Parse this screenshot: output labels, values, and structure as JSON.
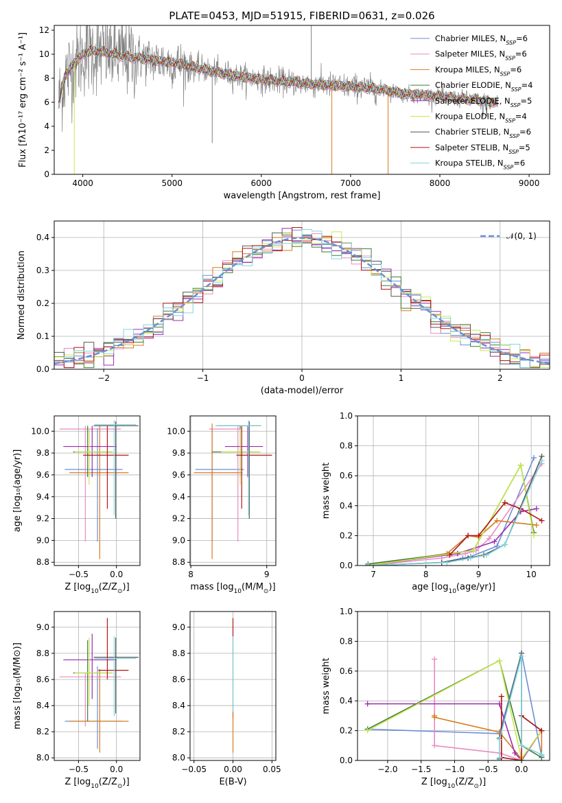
{
  "title": "PLATE=0453, MJD=51915, FIBERID=0631, z=0.026",
  "colors": {
    "Chabrier MILES": "#6b8ed6",
    "Salpeter MILES": "#e98ac4",
    "Kroupa MILES": "#d87a1e",
    "Chabrier ELODIE": "#3e7a3a",
    "Salpeter ELODIE": "#9c2ab0",
    "Kroupa ELODIE": "#c7e84a",
    "Chabrier STELIB": "#555555",
    "Salpeter STELIB": "#b01515",
    "Kroupa STELIB": "#7fd6de",
    "data": "#808080",
    "normal": "#6b8ed6"
  },
  "chart_data": [
    {
      "id": "spectrum",
      "type": "line",
      "xlabel": "wavelength [Angstrom, rest frame]",
      "ylabel": "Flux [fλ10⁻¹⁷ erg cm⁻² s⁻¹ A⁻¹]",
      "xlim": [
        3680,
        9230
      ],
      "ylim": [
        0,
        12.4
      ],
      "xticks": [
        4000,
        5000,
        6000,
        7000,
        8000,
        9000
      ],
      "yticks": [
        0,
        2,
        4,
        6,
        8,
        10,
        12
      ],
      "grid": false,
      "legend_position": "top-right",
      "legend": [
        {
          "name": "Chabrier MILES",
          "label_main": "Chabrier MILES, N",
          "sub": "SSP",
          "suffix": "=6"
        },
        {
          "name": "Salpeter MILES",
          "label_main": "Salpeter MILES, N",
          "sub": "SSP",
          "suffix": "=6"
        },
        {
          "name": "Kroupa MILES",
          "label_main": "Kroupa MILES, N",
          "sub": "SSP",
          "suffix": "=6"
        },
        {
          "name": "Chabrier ELODIE",
          "label_main": "Chabrier ELODIE, N",
          "sub": "SSP",
          "suffix": "=4"
        },
        {
          "name": "Salpeter ELODIE",
          "label_main": "Salpeter ELODIE, N",
          "sub": "SSP",
          "suffix": "=5"
        },
        {
          "name": "Kroupa ELODIE",
          "label_main": "Kroupa ELODIE, N",
          "sub": "SSP",
          "suffix": "=4"
        },
        {
          "name": "Chabrier STELIB",
          "label_main": "Chabrier STELIB, N",
          "sub": "SSP",
          "suffix": "=6"
        },
        {
          "name": "Salpeter STELIB",
          "label_main": "Salpeter STELIB, N",
          "sub": "SSP",
          "suffix": "=5"
        },
        {
          "name": "Kroupa STELIB",
          "label_main": "Kroupa STELIB, N",
          "sub": "SSP",
          "suffix": "=6"
        }
      ],
      "continuum": {
        "x": [
          3730,
          3800,
          3900,
          4000,
          4100,
          4300,
          4500,
          4700,
          5000,
          5200,
          5500,
          5800,
          6000,
          6300,
          6600,
          6800,
          7000,
          7200,
          7400,
          7600,
          7800,
          8000,
          8200,
          8400,
          8600,
          8800,
          9000
        ],
        "y": [
          6.0,
          8.2,
          9.2,
          10.0,
          10.3,
          10.1,
          9.8,
          9.6,
          9.3,
          9.0,
          8.5,
          8.1,
          7.9,
          7.7,
          7.5,
          7.4,
          7.3,
          7.2,
          7.0,
          6.7,
          6.6,
          6.5,
          6.3,
          6.2,
          6.0,
          5.9,
          5.8
        ]
      },
      "spikes": [
        {
          "x": 3905,
          "y": 0
        },
        {
          "x": 6790,
          "y": 0
        },
        {
          "x": 7420,
          "y": 0
        },
        {
          "x": 5450,
          "y": 2.6
        },
        {
          "x": 6560,
          "y": 12.4
        }
      ]
    },
    {
      "id": "residuals",
      "type": "step",
      "xlabel": "(data-model)/error",
      "ylabel": "Normed distribution",
      "xlim": [
        -2.5,
        2.5
      ],
      "ylim": [
        0,
        0.45
      ],
      "xticks": [
        -2,
        -1,
        0,
        1,
        2
      ],
      "xtick_labels": [
        "−2",
        "−1",
        "0",
        "1",
        "2"
      ],
      "yticks": [
        0.0,
        0.1,
        0.2,
        0.3,
        0.4
      ],
      "ytick_labels": [
        "0.0",
        "0.1",
        "0.2",
        "0.3",
        "0.4"
      ],
      "grid": true,
      "legend_position": "top-right",
      "legend": [
        {
          "name": "normal",
          "label_main": "𝒩(0, 1)"
        }
      ],
      "bin_width": 0.1
    },
    {
      "id": "age_vs_Z",
      "type": "errorbar",
      "xlabel_main": "Z [log",
      "xlabel_sub": "10",
      "xlabel_rest": "(Z/Z",
      "xlabel_sub2": "⊙",
      "xlabel_end": ")]",
      "ylabel": "age  [log₁₀(age/yr)]",
      "xlim": [
        -0.82,
        0.31
      ],
      "ylim": [
        8.77,
        10.14
      ],
      "xticks": [
        -0.5,
        0.0
      ],
      "xtick_labels": [
        "−0.5",
        "0.0"
      ],
      "yticks": [
        8.8,
        9.0,
        9.2,
        9.4,
        9.6,
        9.8,
        10.0
      ],
      "ytick_labels": [
        "8.8",
        "9.0",
        "9.2",
        "9.4",
        "9.6",
        "9.8",
        "10.0"
      ],
      "grid": true,
      "points": [
        {
          "series": "Chabrier MILES",
          "x": -0.25,
          "y": 9.65,
          "x_lo": -0.68,
          "x_hi": 0.08,
          "y_lo": 8.99,
          "y_hi": 10.03
        },
        {
          "series": "Salpeter MILES",
          "x": -0.41,
          "y": 10.02,
          "x_lo": -0.75,
          "x_hi": 0.06,
          "y_lo": 8.99,
          "y_hi": 10.05
        },
        {
          "series": "Kroupa MILES",
          "x": -0.22,
          "y": 9.62,
          "x_lo": -0.62,
          "x_hi": 0.16,
          "y_lo": 8.83,
          "y_hi": 10.05
        },
        {
          "series": "Chabrier ELODIE",
          "x": -0.38,
          "y": 9.81,
          "x_lo": -0.57,
          "x_hi": -0.05,
          "y_lo": 9.58,
          "y_hi": 10.05
        },
        {
          "series": "Salpeter ELODIE",
          "x": -0.32,
          "y": 9.86,
          "x_lo": -0.7,
          "x_hi": 0.0,
          "y_lo": 9.58,
          "y_hi": 10.05
        },
        {
          "series": "Kroupa ELODIE",
          "x": -0.36,
          "y": 9.81,
          "x_lo": -0.55,
          "x_hi": -0.05,
          "y_lo": 9.51,
          "y_hi": 10.02
        },
        {
          "series": "Chabrier STELIB",
          "x": -0.01,
          "y": 10.05,
          "x_lo": -0.3,
          "x_hi": 0.29,
          "y_lo": 9.2,
          "y_hi": 10.09
        },
        {
          "series": "Salpeter STELIB",
          "x": -0.12,
          "y": 9.78,
          "x_lo": -0.44,
          "x_hi": 0.16,
          "y_lo": 9.29,
          "y_hi": 10.05
        },
        {
          "series": "Kroupa STELIB",
          "x": -0.03,
          "y": 10.06,
          "x_lo": -0.29,
          "x_hi": 0.26,
          "y_lo": 9.23,
          "y_hi": 10.1
        }
      ]
    },
    {
      "id": "age_vs_mass",
      "type": "errorbar",
      "xlabel_main": "mass [log",
      "xlabel_sub": "10",
      "xlabel_rest": "(M/M",
      "xlabel_sub2": "⊙",
      "xlabel_end": ")]",
      "ylabel": "",
      "xlim": [
        7.99,
        9.12
      ],
      "ylim": [
        8.77,
        10.14
      ],
      "xticks": [
        8,
        9
      ],
      "xtick_labels": [
        "8",
        "9"
      ],
      "yticks": [
        8.8,
        9.0,
        9.2,
        9.4,
        9.6,
        9.8,
        10.0
      ],
      "ytick_labels": [
        "8.8",
        "9.0",
        "9.2",
        "9.4",
        "9.6",
        "9.8",
        "10.0"
      ],
      "grid": true,
      "points": [
        {
          "series": "Chabrier MILES",
          "x": 8.28,
          "y": 9.65,
          "x_lo": 8.06,
          "x_hi": 8.7,
          "y_lo": 8.99,
          "y_hi": 10.03
        },
        {
          "series": "Salpeter MILES",
          "x": 8.62,
          "y": 10.02,
          "x_lo": 8.24,
          "x_hi": 8.65,
          "y_lo": 8.99,
          "y_hi": 10.05
        },
        {
          "series": "Kroupa MILES",
          "x": 8.28,
          "y": 9.62,
          "x_lo": 8.04,
          "x_hi": 8.68,
          "y_lo": 8.83,
          "y_hi": 10.07
        },
        {
          "series": "Chabrier ELODIE",
          "x": 8.65,
          "y": 9.81,
          "x_lo": 8.28,
          "x_hi": 8.9,
          "y_lo": 9.58,
          "y_hi": 10.05
        },
        {
          "series": "Salpeter ELODIE",
          "x": 8.75,
          "y": 9.86,
          "x_lo": 8.45,
          "x_hi": 8.95,
          "y_lo": 9.58,
          "y_hi": 10.05
        },
        {
          "series": "Kroupa ELODIE",
          "x": 8.65,
          "y": 9.81,
          "x_lo": 8.4,
          "x_hi": 8.92,
          "y_lo": 9.51,
          "y_hi": 10.02
        },
        {
          "series": "Chabrier STELIB",
          "x": 8.77,
          "y": 10.05,
          "x_lo": 8.34,
          "x_hi": 8.92,
          "y_lo": 9.2,
          "y_hi": 10.09
        },
        {
          "series": "Salpeter STELIB",
          "x": 8.67,
          "y": 9.78,
          "x_lo": 8.6,
          "x_hi": 9.07,
          "y_lo": 9.29,
          "y_hi": 10.05
        },
        {
          "series": "Kroupa STELIB",
          "x": 8.76,
          "y": 10.05,
          "x_lo": 8.32,
          "x_hi": 8.93,
          "y_lo": 9.23,
          "y_hi": 10.1
        }
      ]
    },
    {
      "id": "weight_vs_age",
      "type": "line",
      "xlabel_main": "age  [log",
      "xlabel_sub": "10",
      "xlabel_rest": "(age/yr)]",
      "ylabel": "mass weight",
      "xlim": [
        6.7,
        10.35
      ],
      "ylim": [
        0,
        1.0
      ],
      "xticks": [
        7,
        8,
        9,
        10
      ],
      "xtick_labels": [
        "7",
        "8",
        "9",
        "10"
      ],
      "yticks": [
        0.0,
        0.2,
        0.4,
        0.6,
        0.8,
        1.0
      ],
      "ytick_labels": [
        "0.0",
        "0.2",
        "0.4",
        "0.6",
        "0.8",
        "1.0"
      ],
      "grid": true,
      "series": [
        {
          "name": "Chabrier MILES",
          "x": [
            6.9,
            8.3,
            8.7,
            8.85,
            9.35,
            10.05
          ],
          "y": [
            0.0,
            0.02,
            0.05,
            0.06,
            0.13,
            0.72
          ]
        },
        {
          "name": "Salpeter MILES",
          "x": [
            6.9,
            8.3,
            8.75,
            8.95,
            9.2,
            10.2
          ],
          "y": [
            0.0,
            0.05,
            0.08,
            0.1,
            0.18,
            0.68
          ]
        },
        {
          "name": "Kroupa MILES",
          "x": [
            6.9,
            8.4,
            8.8,
            9.0,
            9.35,
            10.1
          ],
          "y": [
            0.0,
            0.08,
            0.2,
            0.19,
            0.3,
            0.27
          ]
        },
        {
          "name": "Chabrier ELODIE",
          "x": [
            6.9,
            8.9,
            9.8,
            10.05
          ],
          "y": [
            0.01,
            0.1,
            0.67,
            0.22
          ]
        },
        {
          "name": "Salpeter ELODIE",
          "x": [
            6.9,
            8.6,
            9.3,
            9.8,
            10.1
          ],
          "y": [
            0.0,
            0.08,
            0.16,
            0.36,
            0.38
          ]
        },
        {
          "name": "Kroupa ELODIE",
          "x": [
            6.9,
            8.9,
            9.8,
            10.05
          ],
          "y": [
            0.0,
            0.1,
            0.67,
            0.2
          ]
        },
        {
          "name": "Chabrier STELIB",
          "x": [
            6.9,
            8.3,
            8.8,
            9.1,
            9.5,
            10.2
          ],
          "y": [
            0.0,
            0.02,
            0.05,
            0.07,
            0.14,
            0.73
          ]
        },
        {
          "name": "Salpeter STELIB",
          "x": [
            8.45,
            8.8,
            9.0,
            9.5,
            9.8,
            10.2
          ],
          "y": [
            0.07,
            0.2,
            0.2,
            0.42,
            0.38,
            0.3
          ]
        },
        {
          "name": "Kroupa STELIB",
          "x": [
            6.9,
            8.4,
            8.85,
            9.15,
            9.5,
            10.2
          ],
          "y": [
            0.0,
            0.02,
            0.05,
            0.07,
            0.14,
            0.7
          ]
        }
      ]
    },
    {
      "id": "mass_vs_Z",
      "type": "errorbar",
      "xlabel_main": "Z [log",
      "xlabel_sub": "10",
      "xlabel_rest": "(Z/Z",
      "xlabel_sub2": "⊙",
      "xlabel_end": ")]",
      "ylabel": "mass [log₁₀(M/M⊙)]",
      "xlim": [
        -0.82,
        0.31
      ],
      "ylim": [
        7.98,
        9.12
      ],
      "xticks": [
        -0.5,
        0.0
      ],
      "xtick_labels": [
        "−0.5",
        "0.0"
      ],
      "yticks": [
        8.0,
        8.2,
        8.4,
        8.6,
        8.8,
        9.0
      ],
      "ytick_labels": [
        "8.0",
        "8.2",
        "8.4",
        "8.6",
        "8.8",
        "9.0"
      ],
      "grid": true,
      "points": [
        {
          "series": "Chabrier MILES",
          "x": -0.25,
          "y": 8.28,
          "x_lo": -0.68,
          "x_hi": 0.08,
          "y_lo": 8.07,
          "y_hi": 8.7
        },
        {
          "series": "Salpeter MILES",
          "x": -0.41,
          "y": 8.62,
          "x_lo": -0.75,
          "x_hi": 0.06,
          "y_lo": 8.24,
          "y_hi": 8.65
        },
        {
          "series": "Kroupa MILES",
          "x": -0.22,
          "y": 8.28,
          "x_lo": -0.62,
          "x_hi": 0.16,
          "y_lo": 8.04,
          "y_hi": 8.68
        },
        {
          "series": "Chabrier ELODIE",
          "x": -0.38,
          "y": 8.65,
          "x_lo": -0.57,
          "x_hi": -0.05,
          "y_lo": 8.28,
          "y_hi": 8.9
        },
        {
          "series": "Salpeter ELODIE",
          "x": -0.32,
          "y": 8.75,
          "x_lo": -0.7,
          "x_hi": 0.0,
          "y_lo": 8.45,
          "y_hi": 8.95
        },
        {
          "series": "Kroupa ELODIE",
          "x": -0.36,
          "y": 8.65,
          "x_lo": -0.55,
          "x_hi": -0.05,
          "y_lo": 8.4,
          "y_hi": 8.92
        },
        {
          "series": "Chabrier STELIB",
          "x": -0.01,
          "y": 8.77,
          "x_lo": -0.3,
          "x_hi": 0.29,
          "y_lo": 8.34,
          "y_hi": 8.92
        },
        {
          "series": "Salpeter STELIB",
          "x": -0.12,
          "y": 8.67,
          "x_lo": -0.24,
          "x_hi": 0.16,
          "y_lo": 8.6,
          "y_hi": 9.07
        },
        {
          "series": "Kroupa STELIB",
          "x": -0.03,
          "y": 8.76,
          "x_lo": -0.29,
          "x_hi": 0.26,
          "y_lo": 8.32,
          "y_hi": 8.93
        }
      ]
    },
    {
      "id": "mass_vs_ebv",
      "type": "errorbar",
      "xlabel_main": "E(B-V)",
      "ylabel": "",
      "xlim": [
        -0.055,
        0.055
      ],
      "ylim": [
        7.98,
        9.12
      ],
      "xticks": [
        -0.05,
        0.0,
        0.05
      ],
      "xtick_labels": [
        "−0.05",
        "0.00",
        "0.05"
      ],
      "yticks": [
        8.0,
        8.2,
        8.4,
        8.6,
        8.8,
        9.0
      ],
      "ytick_labels": [
        "8.0",
        "8.2",
        "8.4",
        "8.6",
        "8.8",
        "9.0"
      ],
      "grid": true,
      "points": [
        {
          "series": "Salpeter STELIB",
          "x": 0.0,
          "y": 8.67,
          "x_lo": 0.0,
          "x_hi": 0.0,
          "y_lo": 8.3,
          "y_hi": 9.07
        },
        {
          "series": "Kroupa STELIB",
          "x": 0.0,
          "y": 8.76,
          "x_lo": 0.0,
          "x_hi": 0.0,
          "y_lo": 8.32,
          "y_hi": 8.93
        },
        {
          "series": "Kroupa MILES",
          "x": 0.0,
          "y": 8.28,
          "x_lo": 0.0,
          "x_hi": 0.0,
          "y_lo": 8.04,
          "y_hi": 8.35
        }
      ]
    },
    {
      "id": "weight_vs_Z",
      "type": "line",
      "xlabel_main": "Z [log",
      "xlabel_sub": "10",
      "xlabel_rest": "(Z/Z",
      "xlabel_sub2": "⊙",
      "xlabel_end": ")]",
      "ylabel": "mass weight",
      "xlim": [
        -2.45,
        0.42
      ],
      "ylim": [
        0,
        1.0
      ],
      "xticks": [
        -2.0,
        -1.5,
        -1.0,
        -0.5,
        0.0
      ],
      "xtick_labels": [
        "−2.0",
        "−1.5",
        "−1.0",
        "−0.5",
        "0.0"
      ],
      "yticks": [
        0.0,
        0.2,
        0.4,
        0.6,
        0.8,
        1.0
      ],
      "ytick_labels": [
        "0.0",
        "0.2",
        "0.4",
        "0.6",
        "0.8",
        "1.0"
      ],
      "grid": true,
      "series": [
        {
          "name": "Chabrier MILES",
          "x": [
            -2.3,
            -0.33,
            0.0,
            0.3
          ],
          "y": [
            0.21,
            0.18,
            0.72,
            0.03
          ]
        },
        {
          "name": "Salpeter MILES",
          "x": [
            -1.3,
            -1.3,
            -0.33,
            0.0
          ],
          "y": [
            0.68,
            0.1,
            0.05,
            0.0
          ]
        },
        {
          "name": "Kroupa MILES",
          "x": [
            -1.3,
            -1.3,
            -0.33,
            0.0,
            0.3,
            0.3
          ],
          "y": [
            0.3,
            0.29,
            0.19,
            0.01,
            0.2,
            0.02
          ]
        },
        {
          "name": "Chabrier ELODIE",
          "x": [
            -2.3,
            -0.33,
            0.0,
            0.3
          ],
          "y": [
            0.21,
            0.67,
            0.1,
            0.02
          ]
        },
        {
          "name": "Salpeter ELODIE",
          "x": [
            -2.3,
            -0.33,
            -0.1,
            0.0,
            0.3
          ],
          "y": [
            0.38,
            0.38,
            0.05,
            0.0,
            0.2
          ]
        },
        {
          "name": "Kroupa ELODIE",
          "x": [
            -2.3,
            -0.33,
            0.0,
            0.3
          ],
          "y": [
            0.2,
            0.67,
            0.01,
            0.2
          ]
        },
        {
          "name": "Chabrier STELIB",
          "x": [
            -0.33,
            -0.33,
            0.0,
            0.0,
            0.3
          ],
          "y": [
            0.01,
            0.15,
            0.72,
            0.3,
            0.2
          ]
        },
        {
          "name": "Salpeter STELIB",
          "x": [
            -0.3,
            -0.3,
            0.0,
            0.0,
            0.3
          ],
          "y": [
            0.43,
            0.02,
            0.0,
            0.3,
            0.2
          ]
        },
        {
          "name": "Kroupa STELIB",
          "x": [
            -0.33,
            -0.33,
            0.0,
            0.0,
            0.3
          ],
          "y": [
            0.02,
            0.14,
            0.7,
            0.1,
            0.04
          ]
        }
      ]
    }
  ]
}
